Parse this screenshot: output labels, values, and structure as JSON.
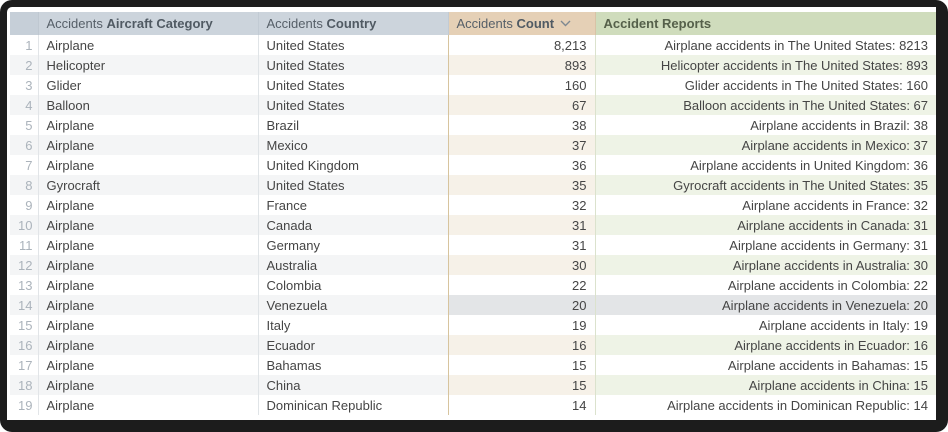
{
  "table": {
    "sort": {
      "column": "Accidents Count",
      "direction": "desc"
    },
    "highlighted_row": 14,
    "columns": [
      {
        "id": "row_number",
        "prefix": "",
        "name": ""
      },
      {
        "id": "aircraft_category",
        "prefix": "Accidents ",
        "name": "Aircraft Category"
      },
      {
        "id": "country",
        "prefix": "Accidents ",
        "name": "Country"
      },
      {
        "id": "count",
        "prefix": "Accidents ",
        "name": "Count"
      },
      {
        "id": "accident_reports",
        "prefix": "",
        "name": "Accident Reports"
      }
    ],
    "rows": [
      {
        "n": "1",
        "category": "Airplane",
        "country": "United States",
        "count": "8,213",
        "report": "Airplane accidents in The United States: 8213"
      },
      {
        "n": "2",
        "category": "Helicopter",
        "country": "United States",
        "count": "893",
        "report": "Helicopter accidents in The United States: 893"
      },
      {
        "n": "3",
        "category": "Glider",
        "country": "United States",
        "count": "160",
        "report": "Glider accidents in The United States: 160"
      },
      {
        "n": "4",
        "category": "Balloon",
        "country": "United States",
        "count": "67",
        "report": "Balloon accidents in The United States: 67"
      },
      {
        "n": "5",
        "category": "Airplane",
        "country": "Brazil",
        "count": "38",
        "report": "Airplane accidents in Brazil: 38"
      },
      {
        "n": "6",
        "category": "Airplane",
        "country": "Mexico",
        "count": "37",
        "report": "Airplane accidents in Mexico: 37"
      },
      {
        "n": "7",
        "category": "Airplane",
        "country": "United Kingdom",
        "count": "36",
        "report": "Airplane accidents in United Kingdom: 36"
      },
      {
        "n": "8",
        "category": "Gyrocraft",
        "country": "United States",
        "count": "35",
        "report": "Gyrocraft accidents in The United States: 35"
      },
      {
        "n": "9",
        "category": "Airplane",
        "country": "France",
        "count": "32",
        "report": "Airplane accidents in France: 32"
      },
      {
        "n": "10",
        "category": "Airplane",
        "country": "Canada",
        "count": "31",
        "report": "Airplane accidents in Canada: 31"
      },
      {
        "n": "11",
        "category": "Airplane",
        "country": "Germany",
        "count": "31",
        "report": "Airplane accidents in Germany: 31"
      },
      {
        "n": "12",
        "category": "Airplane",
        "country": "Australia",
        "count": "30",
        "report": "Airplane accidents in Australia: 30"
      },
      {
        "n": "13",
        "category": "Airplane",
        "country": "Colombia",
        "count": "22",
        "report": "Airplane accidents in Colombia: 22"
      },
      {
        "n": "14",
        "category": "Airplane",
        "country": "Venezuela",
        "count": "20",
        "report": "Airplane accidents in Venezuela: 20"
      },
      {
        "n": "15",
        "category": "Airplane",
        "country": "Italy",
        "count": "19",
        "report": "Airplane accidents in Italy: 19"
      },
      {
        "n": "16",
        "category": "Airplane",
        "country": "Ecuador",
        "count": "16",
        "report": "Airplane accidents in Ecuador: 16"
      },
      {
        "n": "17",
        "category": "Airplane",
        "country": "Bahamas",
        "count": "15",
        "report": "Airplane accidents in Bahamas: 15"
      },
      {
        "n": "18",
        "category": "Airplane",
        "country": "China",
        "count": "15",
        "report": "Airplane accidents in China: 15"
      },
      {
        "n": "19",
        "category": "Airplane",
        "country": "Dominican Republic",
        "count": "14",
        "report": "Airplane accidents in Dominican Republic: 14"
      }
    ]
  },
  "colors": {
    "frame": "#1c1c1c",
    "header_bg": "#ccd4dc",
    "row_number_header_bg": "#c6cfd8",
    "count_header_bg": "#e5d0b6",
    "reports_header_bg": "#cfdcbc",
    "even_row_bg": "#f4f5f6",
    "even_row_count_bg": "#f6f1e8",
    "even_row_reports_bg": "#eef3e6",
    "highlighted_row_bg": "#e3e5e7",
    "text": "#454545",
    "row_number_text": "#abb3bb"
  }
}
